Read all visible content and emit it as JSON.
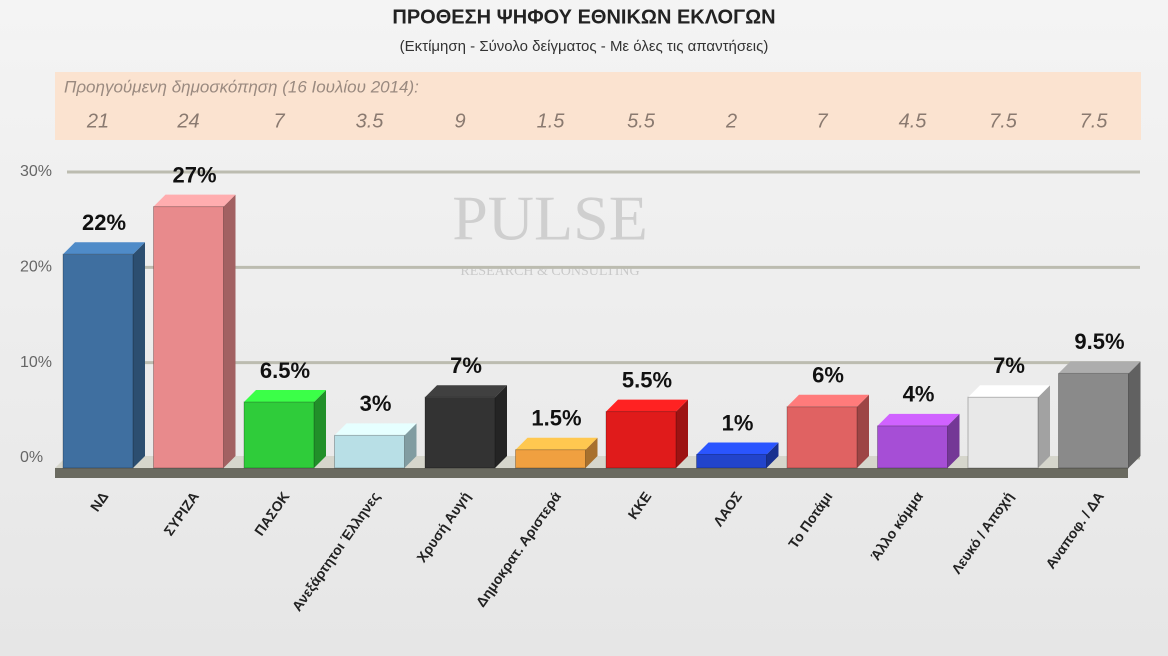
{
  "chart_data": {
    "type": "bar",
    "title": "ΠΡΟΘΕΣΗ ΨΗΦΟΥ ΕΘΝΙΚΩΝ ΕΚΛΟΓΩΝ",
    "subtitle": "(Εκτίμηση - Σύνολο δείγματος - Με όλες τις απαντήσεις)",
    "watermark": [
      "PULSE",
      "RESEARCH & CONSULTING"
    ],
    "previous_poll_label": "Προηγούμενη δημοσκόπηση  (16 Ιουλίου 2014):",
    "previous_values": [
      21,
      24,
      7,
      3.5,
      9,
      1.5,
      5.5,
      2,
      7,
      4.5,
      7.5,
      7.5
    ],
    "categories": [
      "ΝΔ",
      "ΣΥΡΙΖΑ",
      "ΠΑΣΟΚ",
      "Ανεξάρτητοι Έλληνες",
      "Χρυσή Αυγή",
      "Δημοκρατ. Αριστερά",
      "ΚΚΕ",
      "ΛΑΟΣ",
      "Το Ποτάμι",
      "Άλλο κόμμα",
      "Λευκό / Αποχή",
      "Αναποφ. / ΔΑ"
    ],
    "values": [
      22,
      27,
      6.5,
      3,
      7,
      1.5,
      5.5,
      1,
      6,
      4,
      7,
      9.5
    ],
    "value_labels": [
      "22%",
      "27%",
      "6.5%",
      "3%",
      "7%",
      "1.5%",
      "5.5%",
      "1%",
      "6%",
      "4%",
      "7%",
      "9.5%"
    ],
    "colors": [
      "#3f6fa0",
      "#e88a8c",
      "#2fcc3a",
      "#b8dfe6",
      "#333333",
      "#f0a040",
      "#e01b1b",
      "#2244cc",
      "#e06262",
      "#a64ed6",
      "#e8e8e8",
      "#8a8a8a"
    ],
    "ylim": [
      0,
      30
    ],
    "yticks": [
      {
        "value": 0,
        "label": "0%"
      },
      {
        "value": 10,
        "label": "10%"
      },
      {
        "value": 20,
        "label": "20%"
      },
      {
        "value": 30,
        "label": "30%"
      }
    ],
    "grid": true
  }
}
